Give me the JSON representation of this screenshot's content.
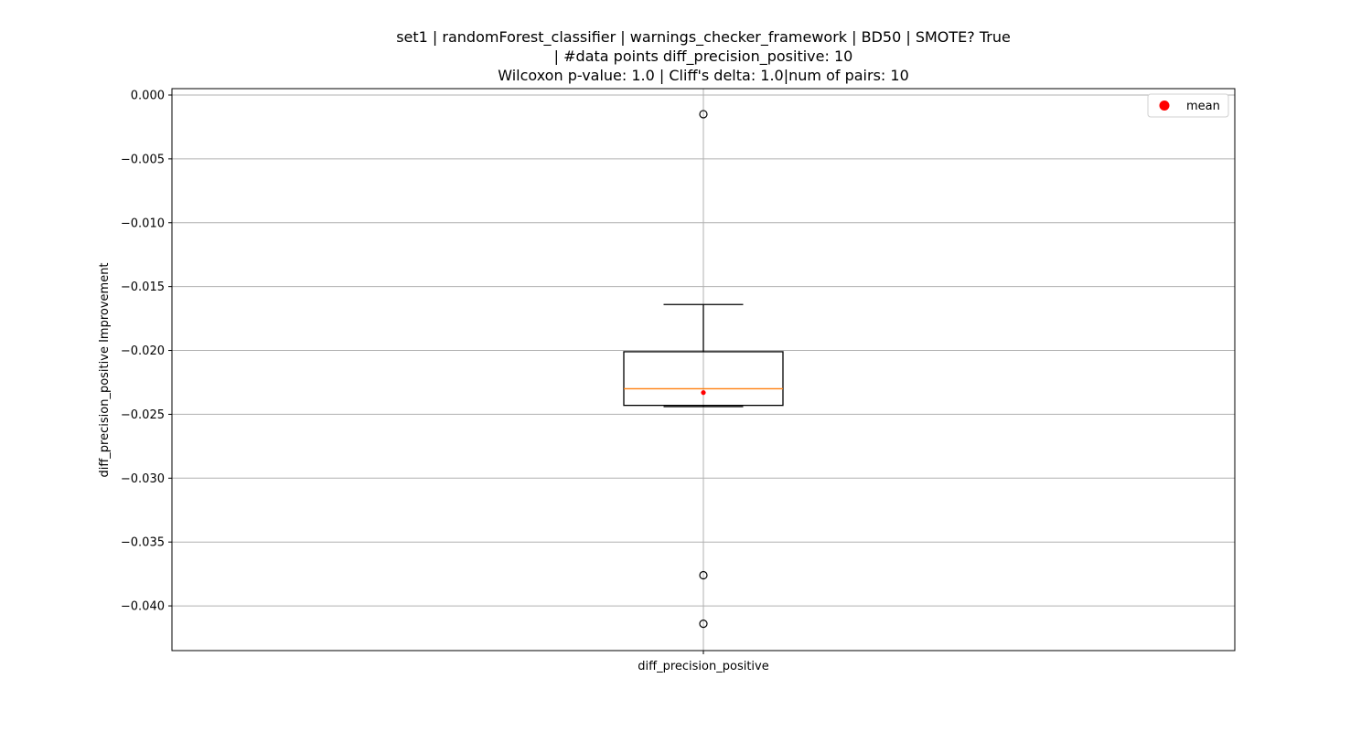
{
  "chart_data": {
    "type": "box",
    "title_lines": [
      "set1 | randomForest_classifier | warnings_checker_framework | BD50 | SMOTE? True",
      "| #data points diff_precision_positive: 10",
      "Wilcoxon p-value: 1.0 | Cliff's delta: 1.0|num of pairs: 10"
    ],
    "xlabel": "",
    "ylabel": "diff_precision_positive Improvement",
    "categories": [
      "diff_precision_positive"
    ],
    "ylim": [
      -0.0435,
      0.0005
    ],
    "yticks": [
      0.0,
      -0.005,
      -0.01,
      -0.015,
      -0.02,
      -0.025,
      -0.03,
      -0.035,
      -0.04
    ],
    "ytick_labels": [
      "0.000",
      "−0.005",
      "−0.010",
      "−0.015",
      "−0.020",
      "−0.025",
      "−0.030",
      "−0.035",
      "−0.040"
    ],
    "box": {
      "q1": -0.0243,
      "median": -0.023,
      "q3": -0.0201,
      "whisker_low": -0.0244,
      "whisker_high": -0.0164,
      "mean": -0.0233,
      "outliers": [
        -0.0015,
        -0.0376,
        -0.0414
      ]
    },
    "grid": true,
    "legend": {
      "position": "top-right",
      "entries": [
        {
          "label": "mean",
          "marker": "circle"
        }
      ]
    },
    "colors": {
      "median": "#ff7f0e",
      "mean": "#ff0000",
      "grid": "#b0b0b0",
      "box": "#000000"
    }
  }
}
